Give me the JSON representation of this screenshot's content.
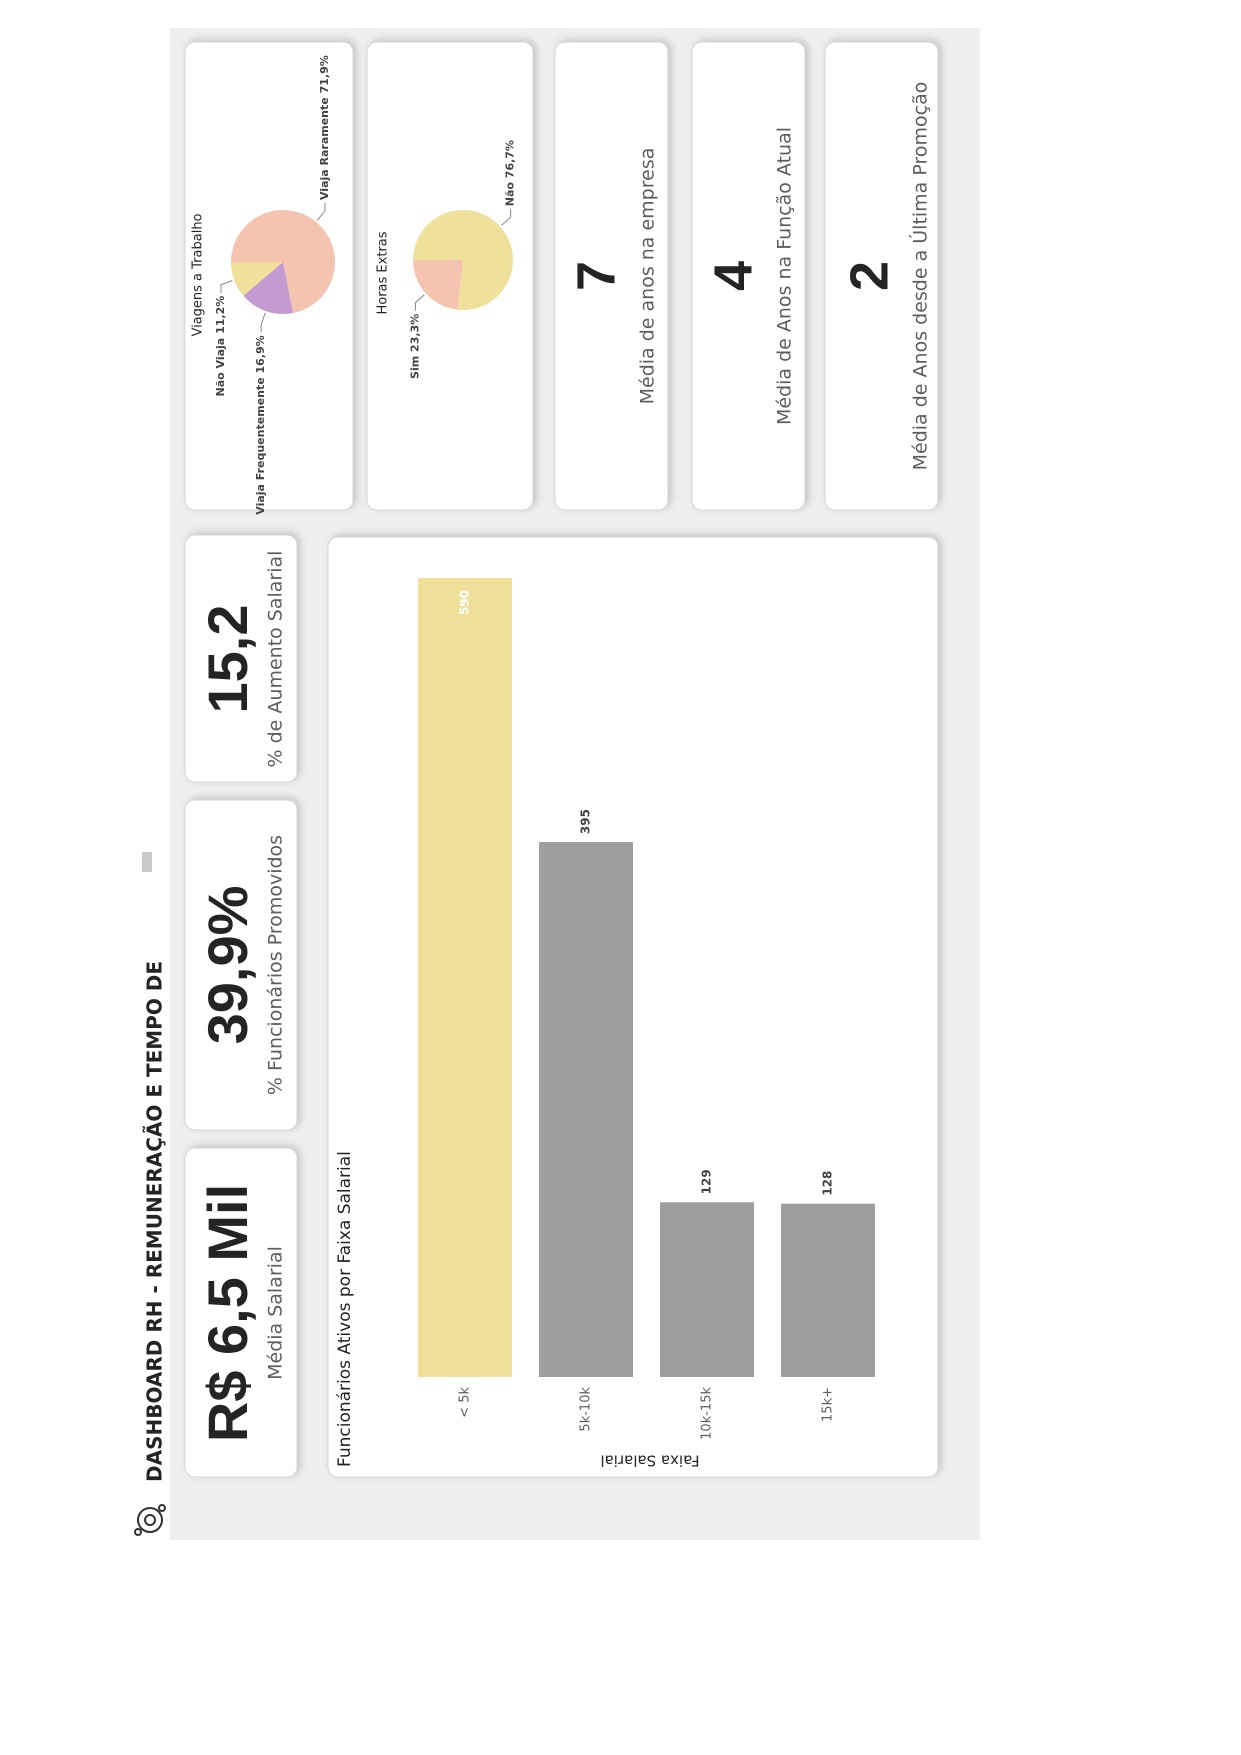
{
  "header": {
    "title": "DASHBOARD RH - REMUNERAÇÃO E TEMPO DE"
  },
  "kpis": [
    {
      "value": "R$ 6,5 Mil",
      "label": "Média Salarial"
    },
    {
      "value": "39,9%",
      "label": "% Funcionários Promovidos"
    },
    {
      "value": "15,2",
      "label": "% de Aumento Salarial"
    }
  ],
  "stats": [
    {
      "value": "7",
      "label": "Média de anos na empresa"
    },
    {
      "value": "4",
      "label": "Média de Anos na Função Atual"
    },
    {
      "value": "2",
      "label": "Média de Anos desde a Última Promoção"
    }
  ],
  "chart_data": [
    {
      "type": "bar",
      "title": "Funcionários Ativos por Faixa Salarial",
      "x_label": "Faixa Salarial",
      "categories": [
        "< 5k",
        "5k-10k",
        "10k-15k",
        "15k+"
      ],
      "values": [
        590,
        395,
        129,
        128
      ],
      "colors": [
        "#efe09a",
        "#9e9e9e",
        "#9e9e9e",
        "#9e9e9e"
      ]
    },
    {
      "type": "pie",
      "title": "Viagens a Trabalho",
      "categories": [
        "Viaja Raramente",
        "Viaja Frequentemente",
        "Não Viaja"
      ],
      "values": [
        71.9,
        16.9,
        11.2
      ],
      "value_labels": [
        "71,9%",
        "16,9%",
        "11,2%"
      ],
      "colors": [
        "#f4c4b1",
        "#c49bd0",
        "#efe09a"
      ]
    },
    {
      "type": "pie",
      "title": "Horas Extras",
      "categories": [
        "Não",
        "Sim"
      ],
      "values": [
        76.7,
        23.3
      ],
      "value_labels": [
        "76,7%",
        "23,3%"
      ],
      "colors": [
        "#efe09a",
        "#f4c4b1"
      ]
    }
  ]
}
